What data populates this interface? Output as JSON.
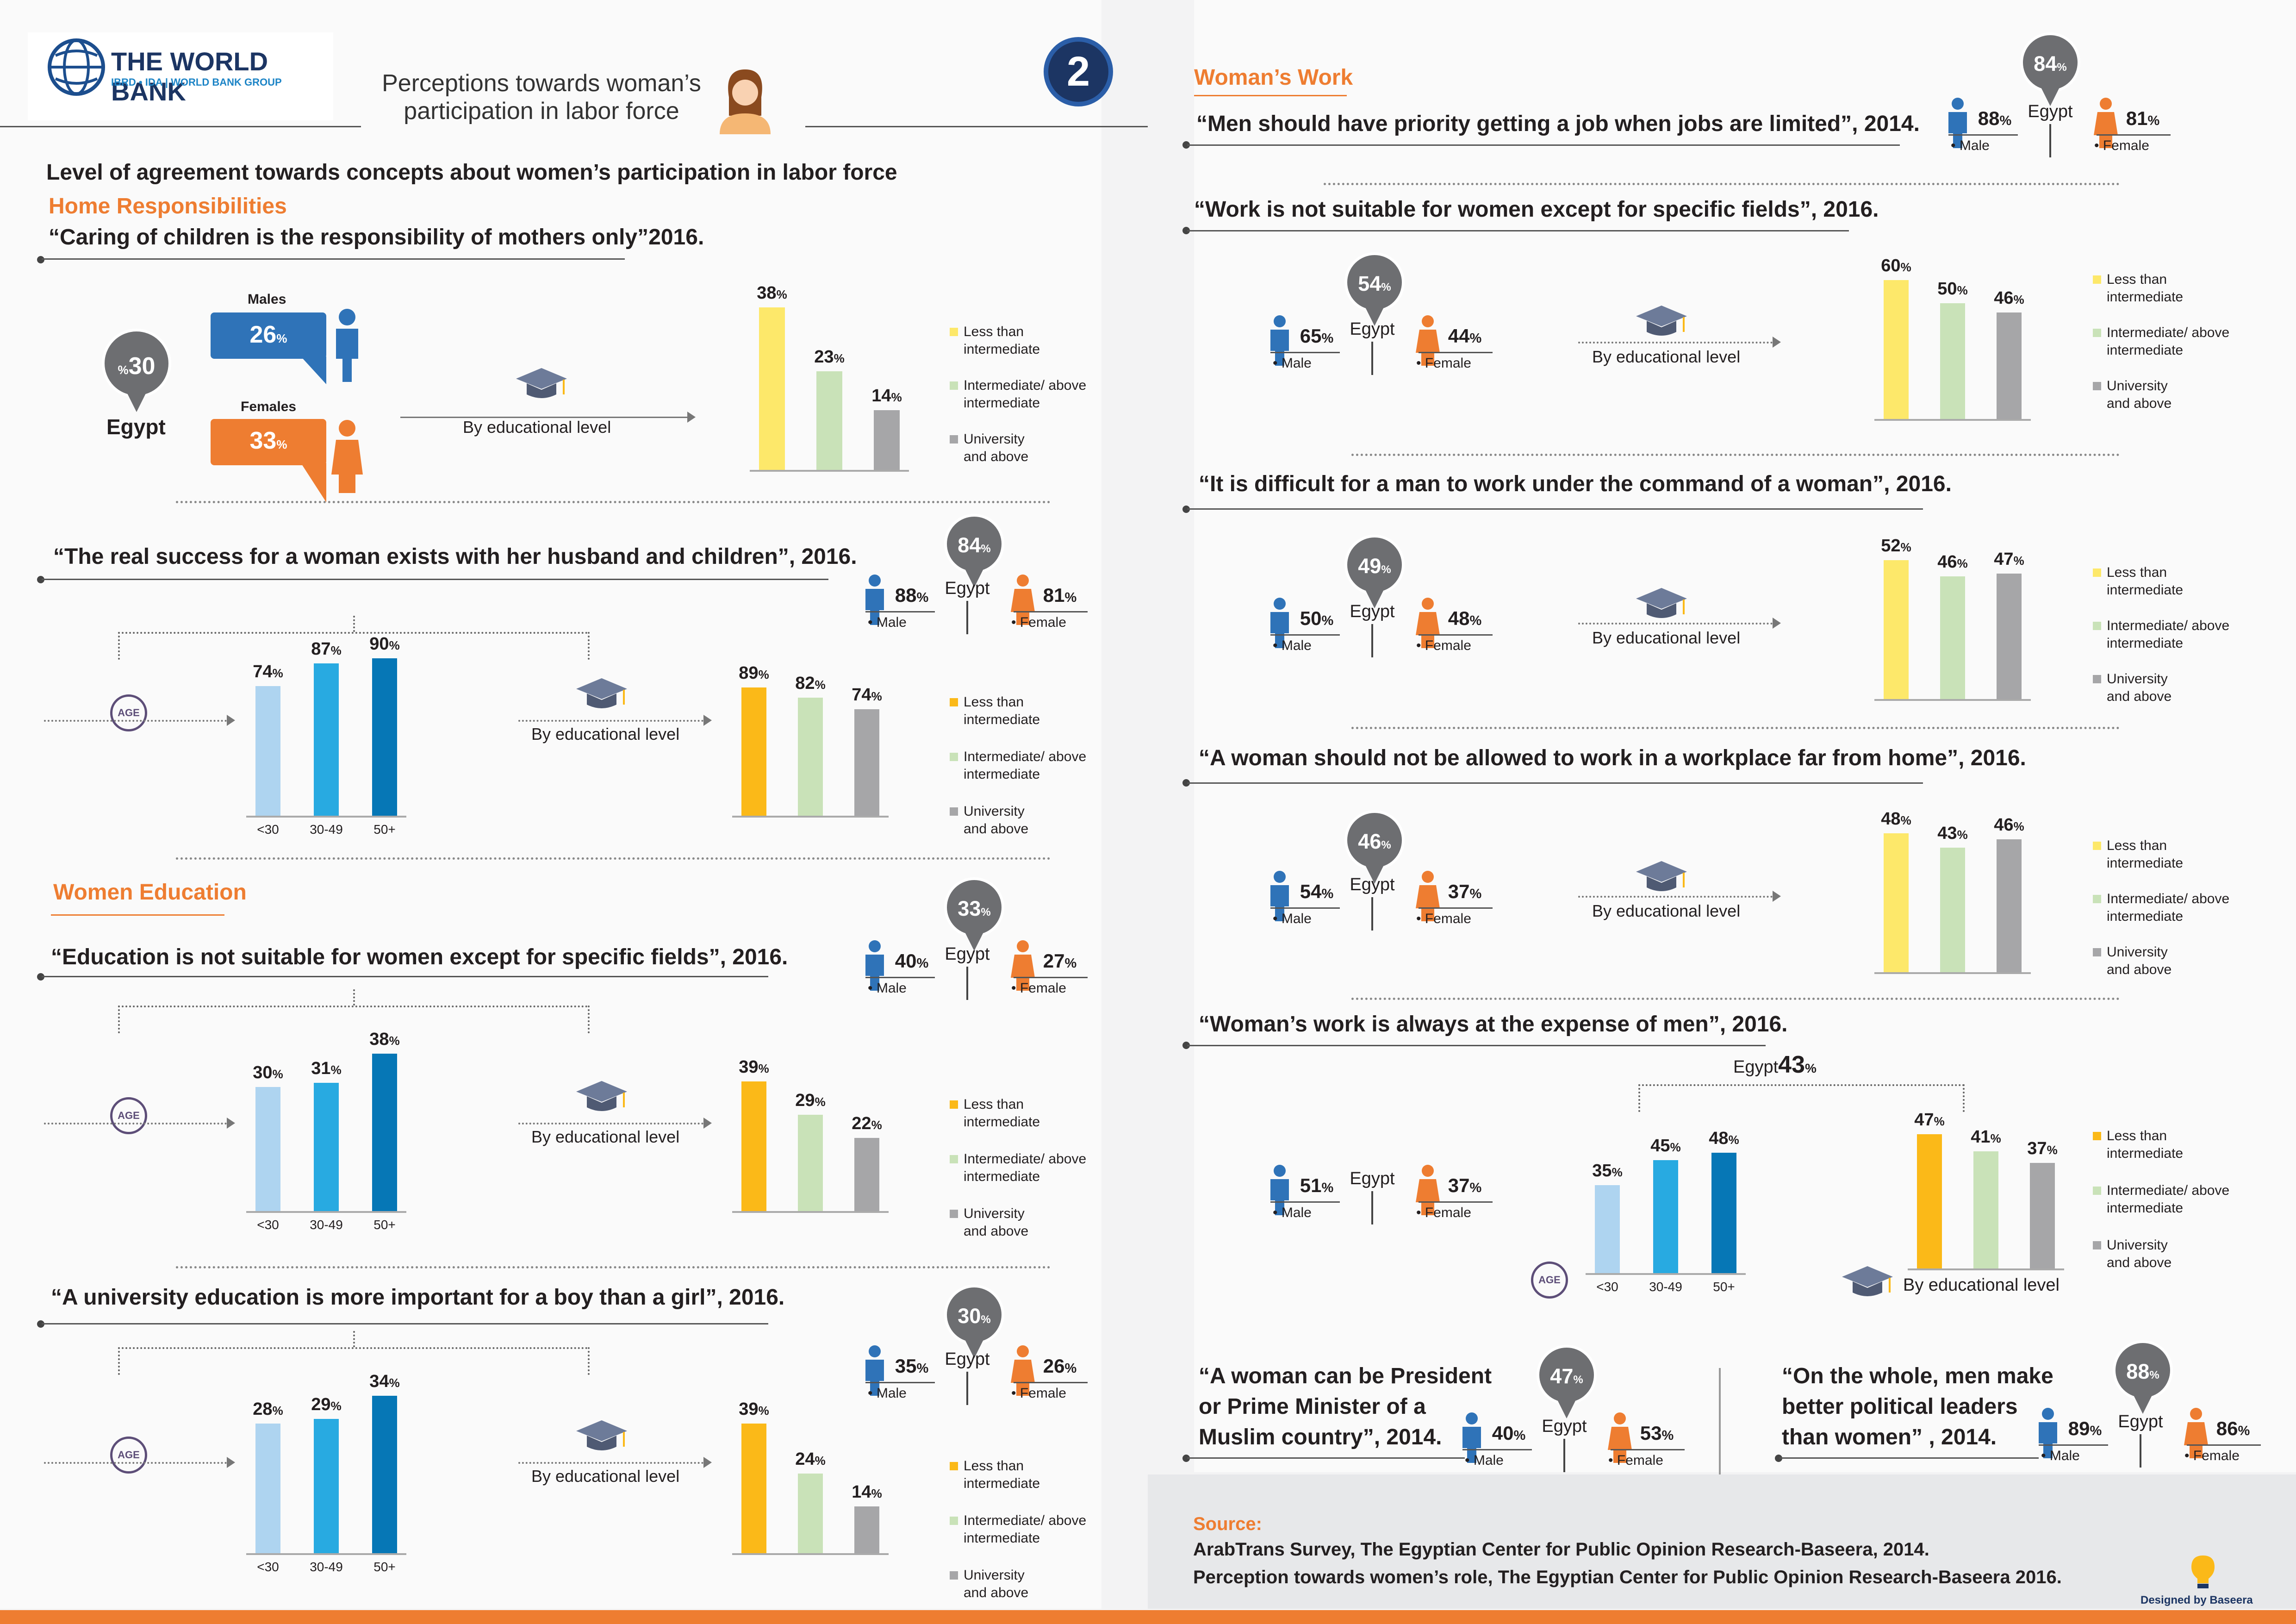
{
  "header": {
    "logo_title": "THE WORLD BANK",
    "logo_subtitle": "IBRD • IDA | WORLD BANK GROUP",
    "title_line1": "Perceptions towards woman’s",
    "title_line2": "participation in labor force",
    "page_number": "2",
    "subtitle": "Level of agreement towards concepts about women’s participation in labor force"
  },
  "common": {
    "egypt": "Egypt",
    "male": "Male",
    "female": "Female",
    "males": "Males",
    "females": "Females",
    "by_edu": "By educational level",
    "age": "AGE",
    "pct": "%"
  },
  "legend": {
    "less": "Less than\nintermediate",
    "inter": "Intermediate/ above\nintermediate",
    "univ": "University\nand above"
  },
  "colors": {
    "orange": "#ee7d31",
    "blue": "#2f73b8",
    "edu_yellow_light": "#fde86a",
    "edu_yellow": "#fbb918",
    "edu_green": "#c9e2b8",
    "edu_gray": "#a6a6a8",
    "age_light": "#aed4f0",
    "age_mid": "#28aae1",
    "age_dark": "#0677b6",
    "pin_gray": "#6d6e71"
  },
  "sections": {
    "home": "Home Responsibilities",
    "education": "Women Education",
    "work": "Woman’s Work"
  },
  "left": {
    "q1": {
      "quote": "“Caring of children is the responsibility of mothers only”2016.",
      "egypt": "30",
      "males": "26",
      "females": "33"
    },
    "q2": {
      "quote": "“The real success for a woman exists with her husband and children”, 2016.",
      "egypt": "84",
      "male": "88",
      "female": "81"
    },
    "q3": {
      "quote": "“Education is not suitable for women except for specific fields”, 2016.",
      "egypt": "33",
      "male": "40",
      "female": "27"
    },
    "q4": {
      "quote": "“A university education is more important for a boy than a girl”, 2016.",
      "egypt": "30",
      "male": "35",
      "female": "26"
    }
  },
  "right": {
    "r1": {
      "quote": "“Men should have priority getting a job when jobs are limited”, 2014.",
      "egypt": "84",
      "male": "88",
      "female": "81"
    },
    "r2": {
      "quote": "“Work is not suitable for women except for specific fields”, 2016.",
      "egypt": "54",
      "male": "65",
      "female": "44"
    },
    "r3": {
      "quote": "“It is difficult for a man to work under the command of a woman”, 2016.",
      "egypt": "49",
      "male": "50",
      "female": "48"
    },
    "r4": {
      "quote": "“A woman should not be allowed to work in a workplace far from home”, 2016.",
      "egypt": "46",
      "male": "54",
      "female": "37"
    },
    "r5": {
      "quote": "“Woman’s work is always at the expense of men”, 2016.",
      "egypt": "43",
      "male": "51",
      "female": "37"
    },
    "r6": {
      "quote_l1": "“A woman can be President",
      "quote_l2": "or Prime Minister of a",
      "quote_l3": "Muslim country”, 2014.",
      "egypt": "47",
      "male": "40",
      "female": "53"
    },
    "r7": {
      "quote_l1": "“On the whole, men make",
      "quote_l2": "better political leaders",
      "quote_l3": "than women” , 2014.",
      "egypt": "88",
      "male": "89",
      "female": "86"
    }
  },
  "source": {
    "label": "Source:",
    "line1": "ArabTrans Survey, The Egyptian Center for Public Opinion Research-Baseera, 2014.",
    "line2": "Perception towards women’s role, The Egyptian Center for Public Opinion Research-Baseera 2016.",
    "designed": "Designed by Baseera"
  },
  "chart_data": [
    {
      "id": "edu_q1",
      "type": "bar",
      "categories": [
        "Less than intermediate",
        "Intermediate/ above intermediate",
        "University and above"
      ],
      "values": [
        38,
        23,
        14
      ],
      "ylim": [
        0,
        40
      ]
    },
    {
      "id": "age_q2",
      "type": "bar",
      "categories": [
        "<30",
        "30-49",
        "50+"
      ],
      "values": [
        74,
        87,
        90
      ],
      "ylim": [
        0,
        90
      ]
    },
    {
      "id": "edu_q2",
      "type": "bar",
      "categories": [
        "Less than intermediate",
        "Intermediate/ above intermediate",
        "University and above"
      ],
      "values": [
        89,
        82,
        74
      ],
      "ylim": [
        0,
        90
      ]
    },
    {
      "id": "age_q3",
      "type": "bar",
      "categories": [
        "<30",
        "30-49",
        "50+"
      ],
      "values": [
        30,
        31,
        38
      ],
      "ylim": [
        0,
        38
      ]
    },
    {
      "id": "edu_q3",
      "type": "bar",
      "categories": [
        "Less than intermediate",
        "Intermediate/ above intermediate",
        "University and above"
      ],
      "values": [
        39,
        29,
        22
      ],
      "ylim": [
        0,
        39
      ]
    },
    {
      "id": "age_q4",
      "type": "bar",
      "categories": [
        "<30",
        "30-49",
        "50+"
      ],
      "values": [
        28,
        29,
        34
      ],
      "ylim": [
        0,
        34
      ]
    },
    {
      "id": "edu_q4",
      "type": "bar",
      "categories": [
        "Less than intermediate",
        "Intermediate/ above intermediate",
        "University and above"
      ],
      "values": [
        39,
        24,
        14
      ],
      "ylim": [
        0,
        39
      ]
    },
    {
      "id": "edu_r2",
      "type": "bar",
      "categories": [
        "Less than intermediate",
        "Intermediate/ above intermediate",
        "University and above"
      ],
      "values": [
        60,
        50,
        46
      ],
      "ylim": [
        0,
        60
      ]
    },
    {
      "id": "edu_r3",
      "type": "bar",
      "categories": [
        "Less than intermediate",
        "Intermediate/ above intermediate",
        "University and above"
      ],
      "values": [
        52,
        46,
        47
      ],
      "ylim": [
        0,
        52
      ]
    },
    {
      "id": "edu_r4",
      "type": "bar",
      "categories": [
        "Less than intermediate",
        "Intermediate/ above intermediate",
        "University and above"
      ],
      "values": [
        48,
        43,
        46
      ],
      "ylim": [
        0,
        48
      ]
    },
    {
      "id": "age_r5",
      "type": "bar",
      "categories": [
        "<30",
        "30-49",
        "50+"
      ],
      "values": [
        35,
        45,
        48
      ],
      "ylim": [
        0,
        48
      ]
    },
    {
      "id": "edu_r5",
      "type": "bar",
      "categories": [
        "Less than intermediate",
        "Intermediate/ above intermediate",
        "University and above"
      ],
      "values": [
        47,
        41,
        37
      ],
      "ylim": [
        0,
        47
      ]
    }
  ]
}
